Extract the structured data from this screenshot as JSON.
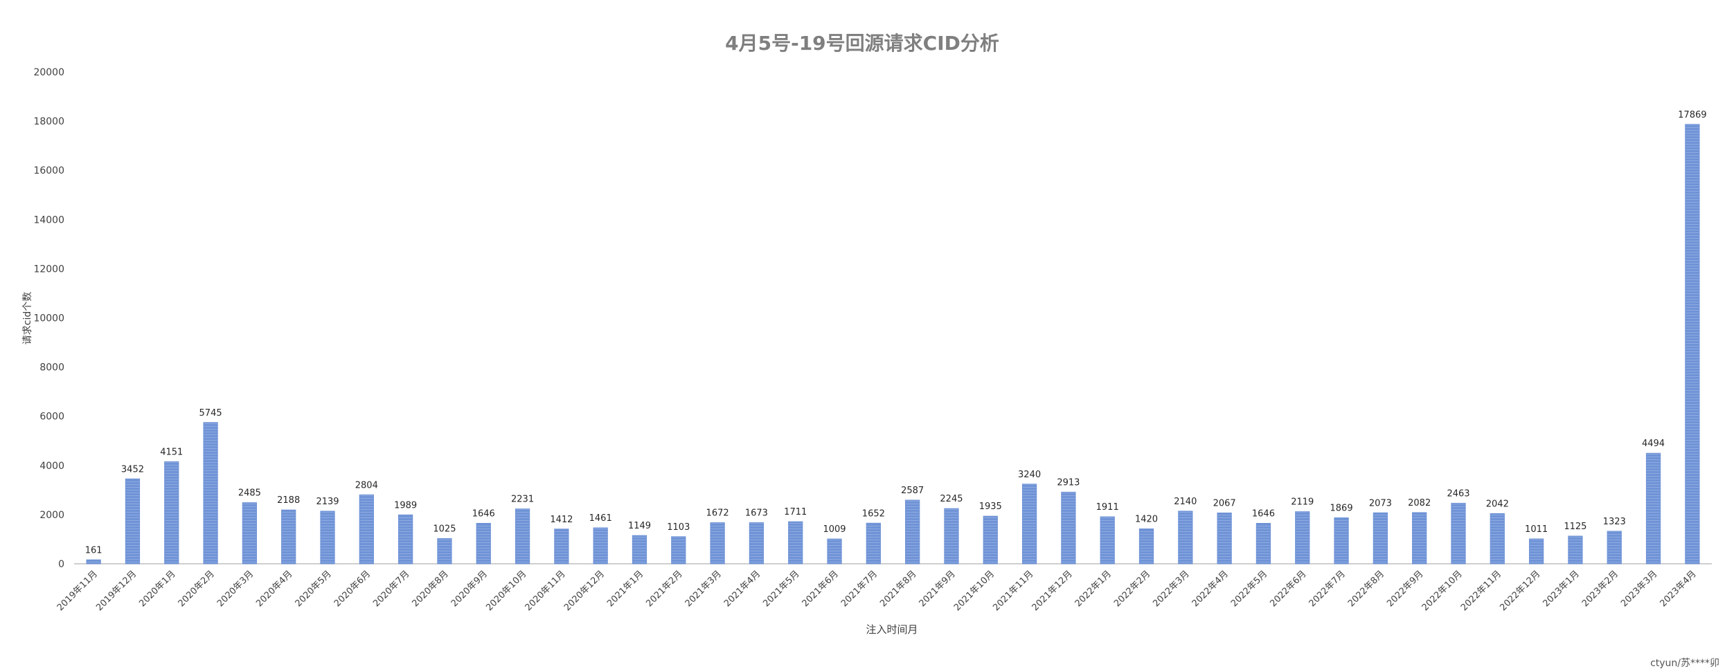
{
  "watermark": "ctyun/苏****卯",
  "chart_data": {
    "type": "bar",
    "title": "4月5号-19号回源请求CID分析",
    "xlabel": "注入时间月",
    "ylabel": "请求cid个数",
    "ylim": [
      0,
      20000
    ],
    "yticks": [
      0,
      2000,
      4000,
      6000,
      8000,
      10000,
      12000,
      14000,
      16000,
      18000,
      20000
    ],
    "grid": false,
    "legend": "none",
    "bar_color": "#6f93d6",
    "categories": [
      "2019年11月",
      "2019年12月",
      "2020年1月",
      "2020年2月",
      "2020年3月",
      "2020年4月",
      "2020年5月",
      "2020年6月",
      "2020年7月",
      "2020年8月",
      "2020年9月",
      "2020年10月",
      "2020年11月",
      "2020年12月",
      "2021年1月",
      "2021年2月",
      "2021年3月",
      "2021年4月",
      "2021年5月",
      "2021年6月",
      "2021年7月",
      "2021年8月",
      "2021年9月",
      "2021年10月",
      "2021年11月",
      "2021年12月",
      "2022年1月",
      "2022年2月",
      "2022年3月",
      "2022年4月",
      "2022年5月",
      "2022年6月",
      "2022年7月",
      "2022年8月",
      "2022年9月",
      "2022年10月",
      "2022年11月",
      "2022年12月",
      "2023年1月",
      "2023年2月",
      "2023年3月",
      "2023年4月"
    ],
    "values": [
      161,
      3452,
      4151,
      5745,
      2485,
      2188,
      2139,
      2804,
      1989,
      1025,
      1646,
      2231,
      1412,
      1461,
      1149,
      1103,
      1672,
      1673,
      1711,
      1009,
      1652,
      2587,
      2245,
      1935,
      3240,
      2913,
      1911,
      1420,
      2140,
      2067,
      1646,
      2119,
      1869,
      2073,
      2082,
      2463,
      2042,
      1011,
      1125,
      1323,
      4494,
      17869
    ]
  }
}
